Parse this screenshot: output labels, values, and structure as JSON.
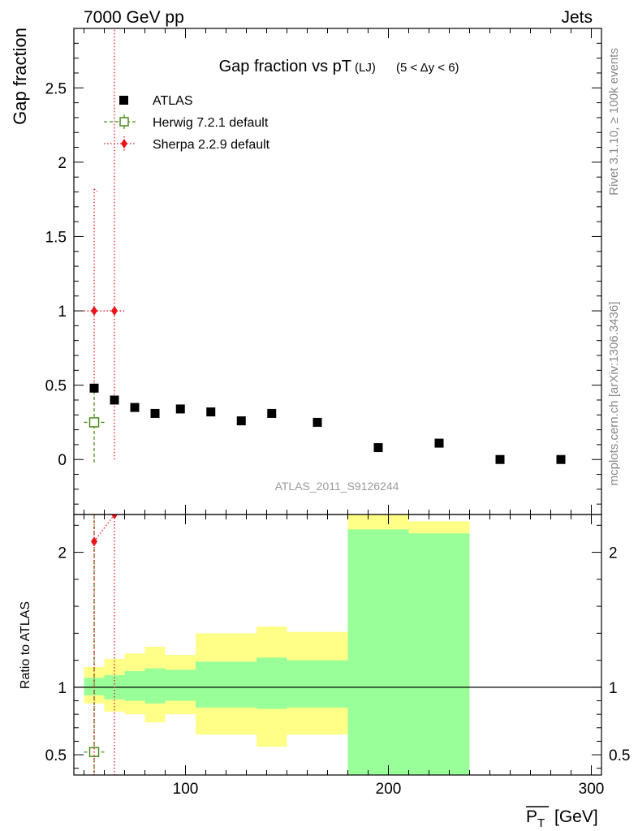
{
  "header": {
    "left_label": "7000 GeV pp",
    "right_label": "Jets"
  },
  "side_labels": {
    "rivet": "Rivet 3.1.10, ≥ 100k events",
    "mcplots": "mcplots.cern.ch [arXiv:1306.3436]"
  },
  "analysis_id": "ATLAS_2011_S9126244",
  "colors": {
    "data": "#000000",
    "herwig": "#4a8c1c",
    "sherpa": "#e8141a",
    "band_inner": "#99ff99",
    "band_outer": "#ffff88"
  },
  "chart_data": [
    {
      "type": "scatter",
      "title": "Gap fraction vs pT",
      "title_sub": "(LJ)",
      "title_cut": "(5 < Δy < 6)",
      "xlabel": "P_T [GeV]",
      "ylabel": "Gap fraction",
      "xlim": [
        45,
        305
      ],
      "ylim": [
        -0.37,
        2.9
      ],
      "yticks": [
        "0",
        "0.5",
        "1",
        "1.5",
        "2",
        "2.5"
      ],
      "legend": [
        "ATLAS",
        "Herwig 7.2.1 default",
        "Sherpa 2.2.9 default"
      ],
      "legend_position": "top-left",
      "series": [
        {
          "name": "ATLAS",
          "marker": "filled-square",
          "points": [
            {
              "x": 55,
              "y": 0.48
            },
            {
              "x": 65,
              "y": 0.4
            },
            {
              "x": 75,
              "y": 0.35
            },
            {
              "x": 85,
              "y": 0.31
            },
            {
              "x": 97.5,
              "y": 0.34
            },
            {
              "x": 112.5,
              "y": 0.32
            },
            {
              "x": 127.5,
              "y": 0.26
            },
            {
              "x": 142.5,
              "y": 0.31
            },
            {
              "x": 165,
              "y": 0.25
            },
            {
              "x": 195,
              "y": 0.08
            },
            {
              "x": 225,
              "y": 0.11
            },
            {
              "x": 255,
              "y": 0.0
            },
            {
              "x": 285,
              "y": 0.0
            }
          ]
        },
        {
          "name": "Herwig 7.2.1 default",
          "marker": "open-square",
          "line": "dashed",
          "points": [
            {
              "x": 55,
              "y": 0.25,
              "xerr": [
                5,
                5
              ],
              "yerr": [
                0.27,
                0.27
              ]
            }
          ]
        },
        {
          "name": "Sherpa 2.2.9 default",
          "marker": "diamond",
          "line": "dotted",
          "points": [
            {
              "x": 55,
              "y": 1.0,
              "xerr": [
                5,
                5
              ],
              "yerr": [
                0.52,
                0.82
              ]
            },
            {
              "x": 65,
              "y": 1.0,
              "xerr": [
                5,
                5
              ],
              "yerr": [
                1.0,
                2.5
              ]
            }
          ]
        }
      ]
    },
    {
      "type": "line",
      "ylabel": "Ratio to ATLAS",
      "xlabel": "P_T [GeV]",
      "xlim": [
        45,
        305
      ],
      "ylim": [
        0.35,
        2.28
      ],
      "xticks": [
        "100",
        "200",
        "300"
      ],
      "yticks": [
        "0.5",
        "1",
        "2"
      ],
      "reference_line": 1,
      "bands": {
        "edges": [
          50,
          60,
          70,
          80,
          90,
          105,
          120,
          135,
          150,
          180,
          210,
          240
        ],
        "inner_low": [
          0.94,
          0.91,
          0.9,
          0.88,
          0.9,
          0.85,
          0.85,
          0.84,
          0.85,
          0.35,
          0.35
        ],
        "inner_high": [
          1.07,
          1.09,
          1.12,
          1.14,
          1.13,
          1.19,
          1.19,
          1.22,
          1.2,
          2.17,
          2.14
        ],
        "outer_low": [
          0.88,
          0.82,
          0.8,
          0.74,
          0.8,
          0.65,
          0.65,
          0.56,
          0.65,
          0.35,
          0.35
        ],
        "outer_high": [
          1.15,
          1.21,
          1.25,
          1.3,
          1.24,
          1.4,
          1.4,
          1.45,
          1.41,
          2.28,
          2.23
        ]
      },
      "series": [
        {
          "name": "Herwig 7.2.1 default",
          "points": [
            {
              "x": 55,
              "y": 0.52,
              "xerr": [
                5,
                5
              ]
            }
          ]
        },
        {
          "name": "Sherpa 2.2.9 default",
          "points": [
            {
              "x": 55,
              "y": 2.08,
              "xerr": [
                5,
                5
              ]
            },
            {
              "x": 65,
              "y": 2.5,
              "xerr": [
                5,
                5
              ]
            }
          ]
        }
      ]
    }
  ]
}
